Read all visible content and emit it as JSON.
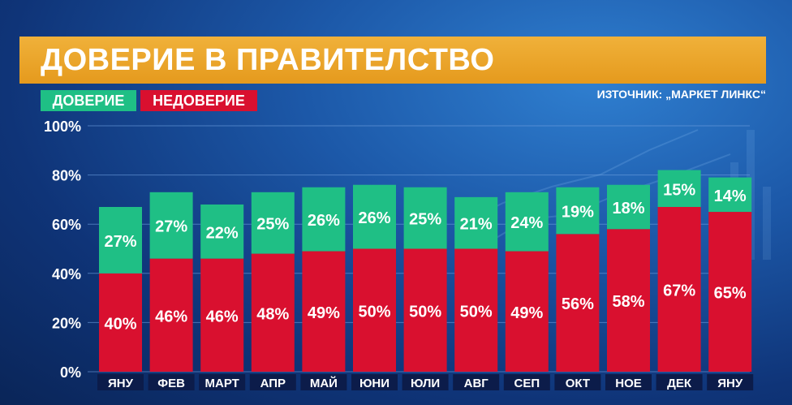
{
  "title": "ДОВЕРИЕ В ПРАВИТЕЛСТВО",
  "legend": [
    {
      "label": "ДОВЕРИЕ",
      "color": "#1fbf85"
    },
    {
      "label": "НЕДОВЕРИЕ",
      "color": "#d9102f"
    }
  ],
  "source": "ИЗТОЧНИК: „МАРКЕТ ЛИНКС“",
  "colors": {
    "title_bar": "#e9a526",
    "trust": "#1fbf85",
    "distrust": "#d9102f",
    "month_label_bg": "#0c1c4a"
  },
  "chart_data": {
    "type": "bar",
    "stacked": true,
    "categories": [
      "ЯНУ",
      "ФЕВ",
      "МАРТ",
      "АПР",
      "МАЙ",
      "ЮНИ",
      "ЮЛИ",
      "АВГ",
      "СЕП",
      "ОКТ",
      "НОЕ",
      "ДЕК",
      "ЯНУ"
    ],
    "series": [
      {
        "name": "НЕДОВЕРИЕ",
        "values": [
          40,
          46,
          46,
          48,
          49,
          50,
          50,
          50,
          49,
          56,
          58,
          67,
          65
        ]
      },
      {
        "name": "ДОВЕРИЕ",
        "values": [
          27,
          27,
          22,
          25,
          26,
          26,
          25,
          21,
          24,
          19,
          18,
          15,
          14
        ]
      }
    ],
    "yticks": [
      "0%",
      "20%",
      "40%",
      "60%",
      "80%",
      "100%"
    ],
    "ylim": [
      0,
      100
    ],
    "grid": true
  }
}
